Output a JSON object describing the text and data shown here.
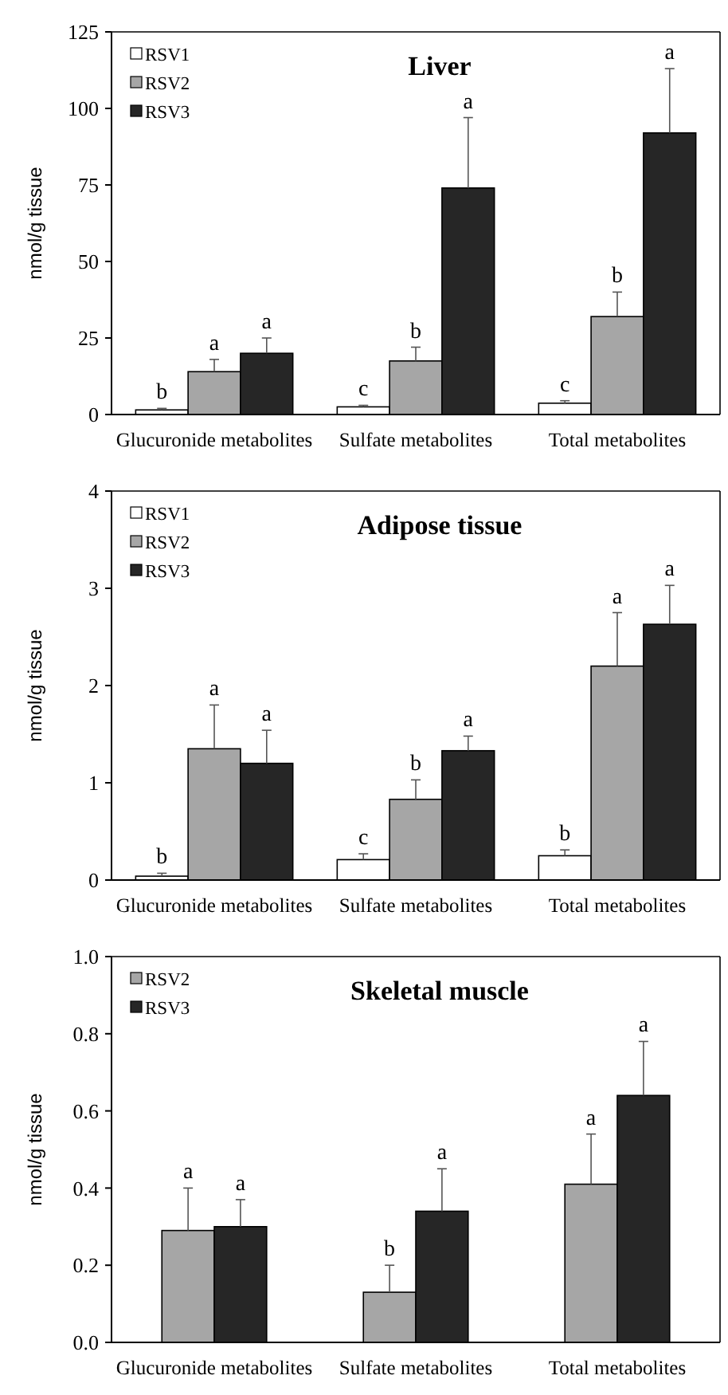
{
  "chart_data": [
    {
      "type": "bar",
      "title": "Liver",
      "ylabel": "nmol/g tissue",
      "categories": [
        "Glucuronide metabolites",
        "Sulfate metabolites",
        "Total metabolites"
      ],
      "ylim": [
        0,
        125
      ],
      "yticks": [
        0,
        25,
        50,
        75,
        100,
        125
      ],
      "legend": "top left",
      "series": [
        {
          "name": "RSV1",
          "color": "#ffffff",
          "values": [
            1.5,
            2.5,
            3.7
          ],
          "errors": [
            [
              1.5,
              2
            ],
            [
              2.5,
              3
            ],
            [
              3.7,
              4.5
            ]
          ]
        },
        {
          "name": "RSV2",
          "color": "#a6a6a6",
          "values": [
            14,
            17.5,
            32
          ],
          "errors": [
            [
              14,
              18
            ],
            [
              17.5,
              22
            ],
            [
              32,
              40
            ]
          ]
        },
        {
          "name": "RSV3",
          "color": "#262626",
          "values": [
            20,
            74,
            92
          ],
          "errors": [
            [
              20,
              25
            ],
            [
              74,
              97
            ],
            [
              92,
              113
            ]
          ]
        }
      ],
      "annotations": [
        "b",
        "a",
        "a",
        "c",
        "b",
        "a",
        "c",
        "b",
        "a"
      ]
    },
    {
      "type": "bar",
      "title": "Adipose tissue",
      "ylabel": "nmol/g tissue",
      "categories": [
        "Glucuronide metabolites",
        "Sulfate metabolites",
        "Total metabolites"
      ],
      "ylim": [
        0,
        4
      ],
      "yticks": [
        0,
        1,
        2,
        3,
        4
      ],
      "legend": "top left",
      "series": [
        {
          "name": "RSV1",
          "color": "#ffffff",
          "values": [
            0.04,
            0.21,
            0.25
          ],
          "errors": [
            [
              0.04,
              0.07
            ],
            [
              0.21,
              0.27
            ],
            [
              0.25,
              0.31
            ]
          ]
        },
        {
          "name": "RSV2",
          "color": "#a6a6a6",
          "values": [
            1.35,
            0.83,
            2.2
          ],
          "errors": [
            [
              1.35,
              1.8
            ],
            [
              0.83,
              1.03
            ],
            [
              2.2,
              2.75
            ]
          ]
        },
        {
          "name": "RSV3",
          "color": "#262626",
          "values": [
            1.2,
            1.33,
            2.63
          ],
          "errors": [
            [
              1.2,
              1.54
            ],
            [
              1.33,
              1.48
            ],
            [
              2.63,
              3.03
            ]
          ]
        }
      ],
      "annotations": [
        "b",
        "a",
        "a",
        "c",
        "b",
        "a",
        "b",
        "a",
        "a"
      ]
    },
    {
      "type": "bar",
      "title": "Skeletal muscle",
      "ylabel": "nmol/g tissue",
      "categories": [
        "Glucuronide metabolites",
        "Sulfate metabolites",
        "Total metabolites"
      ],
      "ylim": [
        0,
        1
      ],
      "yticks": [
        {
          "value": 0,
          "label": "0.0"
        },
        0.2,
        0.4,
        0.6,
        0.8,
        {
          "value": 1,
          "label": "1.0"
        }
      ],
      "legend": "top left",
      "series": [
        {
          "name": "RSV2",
          "color": "#a6a6a6",
          "values": [
            0.29,
            0.13,
            0.41
          ],
          "errors": [
            [
              0.29,
              0.4
            ],
            [
              0.13,
              0.2
            ],
            [
              0.41,
              0.54
            ]
          ]
        },
        {
          "name": "RSV3",
          "color": "#262626",
          "values": [
            0.3,
            0.34,
            0.64
          ],
          "errors": [
            [
              0.3,
              0.37
            ],
            [
              0.34,
              0.45
            ],
            [
              0.64,
              0.78
            ]
          ]
        }
      ],
      "annotations": [
        "a",
        "a",
        "b",
        "a",
        "a",
        "a"
      ]
    }
  ]
}
